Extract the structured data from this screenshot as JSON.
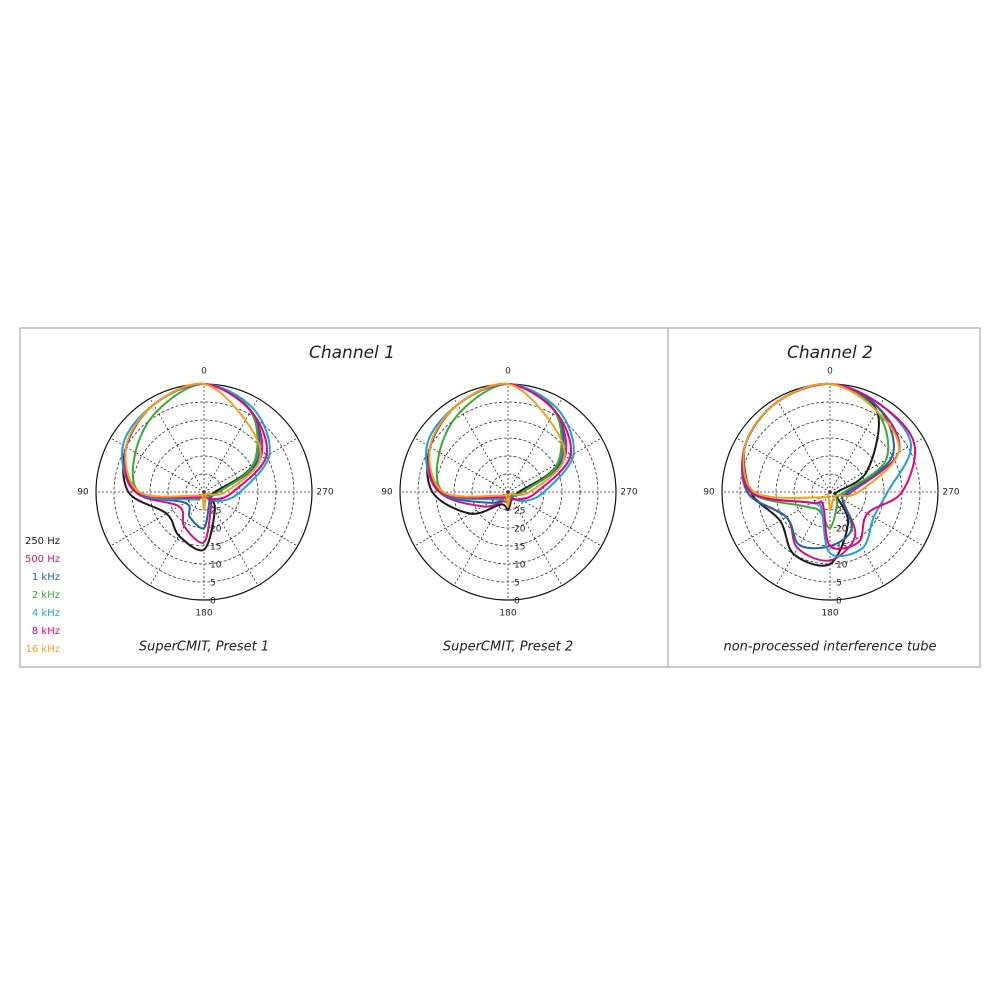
{
  "panels": [
    {
      "title": "Channel 1"
    },
    {
      "title": "Channel 2"
    }
  ],
  "chart_data": [
    {
      "type": "polar",
      "caption": "SuperCMIT, Preset 1",
      "theta": [
        0,
        30,
        60,
        90,
        120,
        150,
        180,
        210,
        240,
        270,
        300,
        330
      ],
      "rlim": [
        30,
        0
      ],
      "rticks": [
        0,
        5,
        10,
        15,
        20,
        25
      ],
      "thetaticks": [
        0,
        90,
        180,
        270
      ],
      "series": [
        {
          "name": "250 Hz",
          "color": "#1a1a1a",
          "values": [
            0,
            2,
            5,
            9,
            18,
            16,
            14,
            24,
            28,
            27,
            14,
            4
          ]
        },
        {
          "name": "500 Hz",
          "color": "#c8177e",
          "values": [
            0,
            2,
            5,
            11,
            22,
            19,
            16,
            26,
            28,
            26,
            12,
            4
          ]
        },
        {
          "name": "1 kHz",
          "color": "#1f62a8",
          "values": [
            0,
            2,
            5,
            11,
            24,
            22,
            20,
            27,
            28,
            26,
            13,
            4
          ]
        },
        {
          "name": "2 kHz",
          "color": "#3aaa35",
          "values": [
            0,
            4,
            8,
            12,
            26,
            28,
            29,
            29,
            28,
            26,
            14,
            4
          ]
        },
        {
          "name": "4 kHz",
          "color": "#1ea0dc",
          "values": [
            0,
            2,
            4,
            11,
            26,
            29,
            29,
            28,
            25,
            20,
            9,
            3
          ]
        },
        {
          "name": "8 kHz",
          "color": "#e6007e",
          "values": [
            0,
            2,
            5,
            11,
            27,
            29,
            29,
            28,
            26,
            22,
            10,
            4
          ]
        },
        {
          "name": "16 kHz",
          "color": "#f0a020",
          "values": [
            0,
            2,
            5,
            12,
            28,
            29,
            25,
            29,
            29,
            24,
            12,
            7
          ]
        }
      ]
    },
    {
      "type": "polar",
      "caption": "SuperCMIT, Preset 2",
      "theta": [
        0,
        30,
        60,
        90,
        120,
        150,
        180,
        210,
        240,
        270,
        300,
        330
      ],
      "rlim": [
        30,
        0
      ],
      "rticks": [
        0,
        5,
        10,
        15,
        20,
        25
      ],
      "thetaticks": [
        0,
        90,
        180,
        270
      ],
      "series": [
        {
          "color": "#1a1a1a",
          "values": [
            0,
            2,
            5,
            9,
            18,
            26,
            25,
            28,
            28,
            27,
            14,
            4
          ]
        },
        {
          "color": "#c8177e",
          "values": [
            0,
            2,
            5,
            11,
            22,
            27,
            27,
            28,
            28,
            26,
            12,
            4
          ]
        },
        {
          "color": "#1f62a8",
          "values": [
            0,
            2,
            5,
            11,
            24,
            28,
            27,
            28,
            28,
            26,
            13,
            4
          ]
        },
        {
          "color": "#3aaa35",
          "values": [
            0,
            4,
            8,
            12,
            26,
            28,
            29,
            29,
            28,
            26,
            14,
            4
          ]
        },
        {
          "color": "#1ea0dc",
          "values": [
            0,
            2,
            4,
            11,
            26,
            29,
            29,
            28,
            25,
            20,
            9,
            3
          ]
        },
        {
          "color": "#e6007e",
          "values": [
            0,
            2,
            5,
            11,
            27,
            29,
            29,
            28,
            26,
            22,
            10,
            4
          ]
        },
        {
          "color": "#f0a020",
          "values": [
            0,
            2,
            5,
            12,
            28,
            29,
            26,
            29,
            29,
            24,
            12,
            7
          ]
        }
      ]
    },
    {
      "type": "polar",
      "caption": "non-processed interference tube",
      "theta": [
        0,
        30,
        60,
        90,
        120,
        150,
        180,
        210,
        240,
        270,
        300,
        330
      ],
      "rlim": [
        30,
        0
      ],
      "rticks": [
        0,
        5,
        10,
        15,
        20,
        25
      ],
      "thetaticks": [
        0,
        90,
        180,
        270
      ],
      "series": [
        {
          "color": "#1a1a1a",
          "values": [
            0,
            1,
            3,
            8,
            14,
            10,
            10,
            20,
            28,
            28,
            18,
            4
          ]
        },
        {
          "color": "#c8177e",
          "values": [
            0,
            1,
            3,
            7,
            16,
            12,
            11,
            16,
            26,
            24,
            8,
            3
          ]
        },
        {
          "color": "#1f62a8",
          "values": [
            0,
            1,
            3,
            7,
            16,
            13,
            15,
            18,
            26,
            25,
            10,
            3
          ]
        },
        {
          "color": "#3aaa35",
          "values": [
            0,
            1,
            3,
            8,
            22,
            24,
            20,
            26,
            28,
            26,
            12,
            4
          ]
        },
        {
          "color": "#1ea0dc",
          "values": [
            0,
            1,
            3,
            8,
            24,
            25,
            13,
            12,
            16,
            14,
            4,
            2
          ]
        },
        {
          "color": "#e6007e",
          "values": [
            0,
            1,
            3,
            8,
            24,
            26,
            15,
            14,
            18,
            10,
            3,
            2
          ]
        },
        {
          "color": "#f0a020",
          "values": [
            0,
            1,
            3,
            9,
            27,
            29,
            25,
            28,
            28,
            22,
            8,
            4
          ]
        }
      ]
    }
  ]
}
